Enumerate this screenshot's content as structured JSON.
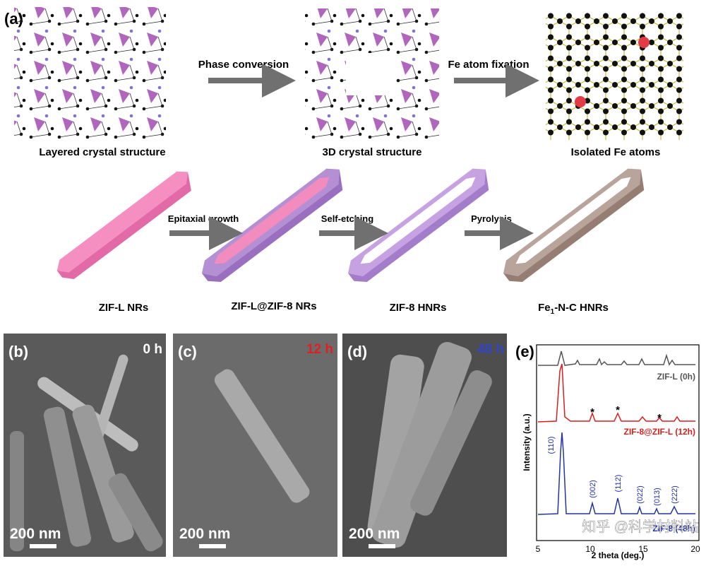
{
  "panel_a": {
    "label": "(a)",
    "structures": [
      "Layered crystal structure",
      "3D crystal structure",
      "Isolated Fe atoms"
    ],
    "top_arrows": [
      "Phase conversion",
      "Fe atom fixation"
    ],
    "products": [
      "ZIF-L NRs",
      "ZIF-L@ZIF-8 NRs",
      "ZIF-8 HNRs"
    ],
    "final_product": {
      "main": "Fe",
      "subscript": "1",
      "rest": "-N-C HNRs"
    },
    "bottom_arrows": [
      "Epitaxial growth",
      "Self-etching",
      "Pyrolysis"
    ]
  },
  "sem_panels": [
    {
      "label": "(b)",
      "time": "0 h",
      "scale": "200 nm"
    },
    {
      "label": "(c)",
      "time": "12 h",
      "scale": "200 nm"
    },
    {
      "label": "(d)",
      "time": "48 h",
      "scale": "200 nm"
    }
  ],
  "panel_e": {
    "label": "(e)",
    "y_label": "Intensity (a.u.)",
    "x_label": "2 theta (deg.)",
    "x_ticks": [
      "5",
      "10",
      "15",
      "20"
    ],
    "traces": [
      "ZIF-L (0h)",
      "ZIF-8@ZIF-L (12h)",
      "ZIF-8 (48h)"
    ],
    "peaks": [
      "(110)",
      "(002)",
      "(112)",
      "(022)",
      "(013)",
      "(222)"
    ],
    "asterisks": [
      "*",
      "*",
      "*"
    ]
  },
  "watermark": "知乎 @科学材料站"
}
